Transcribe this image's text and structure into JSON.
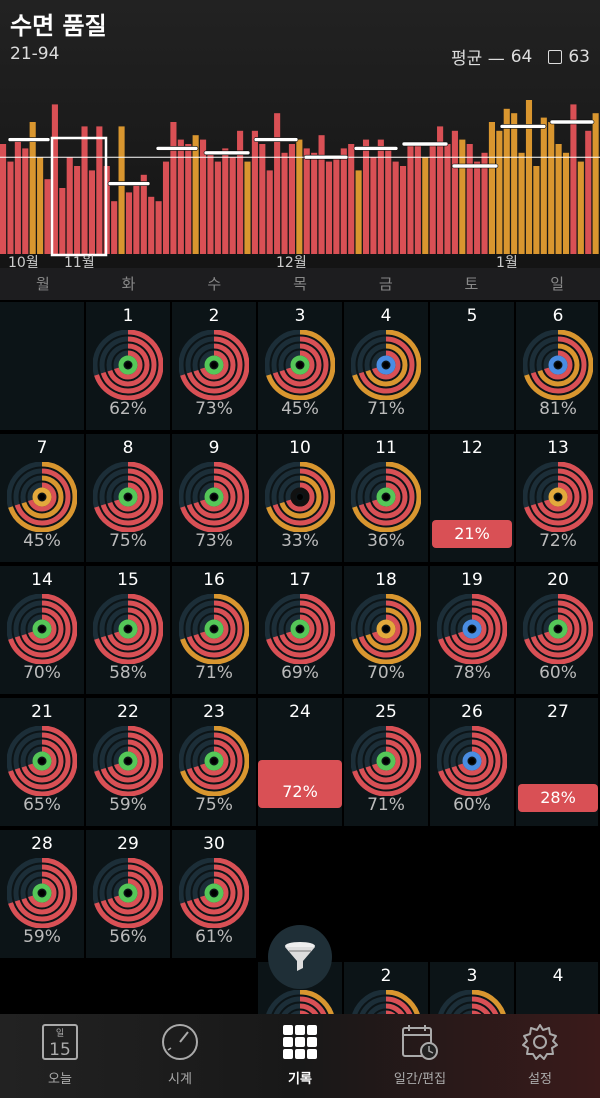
{
  "header": {
    "title": "수면 품질",
    "range": "21-94",
    "avg_label": "평균 —",
    "avg_value": "64",
    "box_value": "63",
    "month_labels": [
      "10월",
      "11월",
      "12월",
      "1월"
    ]
  },
  "weekdays": [
    "월",
    "화",
    "수",
    "목",
    "금",
    "토",
    "일"
  ],
  "colors": {
    "red": "#d95055",
    "orange": "#d9962f",
    "yellow": "#e3a93c",
    "green": "#55c758",
    "blue": "#4a8de2",
    "cell_bg": "#0c1417"
  },
  "chart_data": {
    "type": "bar",
    "values": [
      70,
      62,
      72,
      68,
      80,
      64,
      54,
      88,
      50,
      64,
      60,
      78,
      58,
      78,
      60,
      44,
      78,
      48,
      52,
      56,
      46,
      44,
      62,
      80,
      72,
      70,
      74,
      72,
      66,
      62,
      68,
      64,
      76,
      62,
      76,
      70,
      58,
      84,
      66,
      70,
      72,
      68,
      66,
      74,
      62,
      64,
      68,
      70,
      58,
      72,
      64,
      72,
      68,
      62,
      60,
      70,
      70,
      64,
      70,
      78,
      70,
      76,
      72,
      70,
      62,
      66,
      80,
      76,
      86,
      84,
      66,
      90,
      60,
      82,
      80,
      70,
      66,
      88,
      62,
      76,
      84
    ]
  },
  "calendar": [
    {
      "day": "1",
      "pct": "62%",
      "inner": "green"
    },
    {
      "day": "2",
      "pct": "73%",
      "inner": "green"
    },
    {
      "day": "3",
      "pct": "45%",
      "inner": "green",
      "outer": "orange"
    },
    {
      "day": "4",
      "pct": "71%",
      "inner": "blue",
      "outer": "orange"
    },
    {
      "day": "5",
      "pct": ""
    },
    {
      "day": "6",
      "pct": "81%",
      "inner": "blue",
      "outer": "orange"
    },
    {
      "day": "7",
      "pct": "45%",
      "inner": "yellow",
      "outer": "orange"
    },
    {
      "day": "8",
      "pct": "75%",
      "inner": "green"
    },
    {
      "day": "9",
      "pct": "73%",
      "inner": "green"
    },
    {
      "day": "10",
      "pct": "33%",
      "inner": "dark",
      "outer": "orange"
    },
    {
      "day": "11",
      "pct": "36%",
      "inner": "green",
      "outer": "orange"
    },
    {
      "day": "12",
      "badge": "21%"
    },
    {
      "day": "13",
      "pct": "72%",
      "inner": "yellow"
    },
    {
      "day": "14",
      "pct": "70%",
      "inner": "green"
    },
    {
      "day": "15",
      "pct": "58%",
      "inner": "green"
    },
    {
      "day": "16",
      "pct": "71%",
      "inner": "green",
      "outer": "orange"
    },
    {
      "day": "17",
      "pct": "69%",
      "inner": "green"
    },
    {
      "day": "18",
      "pct": "70%",
      "inner": "yellow",
      "outer": "orange"
    },
    {
      "day": "19",
      "pct": "78%",
      "inner": "blue"
    },
    {
      "day": "20",
      "pct": "60%",
      "inner": "green"
    },
    {
      "day": "21",
      "pct": "65%",
      "inner": "green"
    },
    {
      "day": "22",
      "pct": "59%",
      "inner": "green"
    },
    {
      "day": "23",
      "pct": "75%",
      "inner": "green",
      "outer": "orange"
    },
    {
      "day": "24",
      "badgebig": "72%"
    },
    {
      "day": "25",
      "pct": "71%",
      "inner": "green"
    },
    {
      "day": "26",
      "pct": "60%",
      "inner": "blue"
    },
    {
      "day": "27",
      "badge": "28%"
    },
    {
      "day": "28",
      "pct": "59%",
      "inner": "green"
    },
    {
      "day": "29",
      "pct": "56%",
      "inner": "green"
    },
    {
      "day": "30",
      "pct": "61%",
      "inner": "green"
    }
  ],
  "next_month_days": [
    "2",
    "3",
    "4"
  ],
  "tabbar": {
    "today_label": "오늘",
    "today_date": "15",
    "today_dow": "일",
    "clock_label": "시계",
    "records_label": "기록",
    "daily_label": "일간/편집",
    "settings_label": "설정"
  }
}
